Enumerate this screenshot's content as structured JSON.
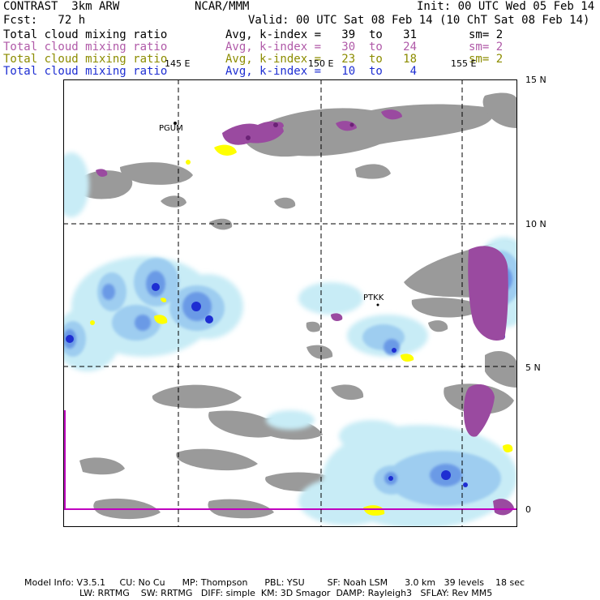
{
  "header": {
    "model": "CONTRAST  3km ARW",
    "org": "NCAR/MMM",
    "init": "Init: 00 UTC Wed 05 Feb 14",
    "fcst": "Fcst:   72 h",
    "valid": "Valid: 00 UTC Sat 08 Feb 14 (10 ChT Sat 08 Feb 14)"
  },
  "fields": [
    {
      "name": "Total cloud mixing ratio",
      "range": "Avg, k-index =   39  to   31",
      "sm": "sm= 2",
      "color": "#000000"
    },
    {
      "name": "Total cloud mixing ratio",
      "range": "Avg, k-index =   30  to   24",
      "sm": "sm= 2",
      "color": "#b05aa8"
    },
    {
      "name": "Total cloud mixing ratio",
      "range": "Avg, k-index =   23  to   18",
      "sm": "sm= 2",
      "color": "#8c8c00"
    },
    {
      "name": "Total cloud mixing ratio",
      "range": "Avg, k-index =   10  to    4",
      "sm": "",
      "color": "#1e2ed2"
    }
  ],
  "map": {
    "lon_labels": [
      "145 E",
      "150 E",
      "155 E"
    ],
    "lat_labels": [
      "15 N",
      "10 N",
      "5 N",
      "0"
    ],
    "stations": [
      {
        "id": "PGUM"
      },
      {
        "id": "PTKK"
      }
    ]
  },
  "footer": {
    "line1": "Model Info: V3.5.1     CU: No Cu      MP: Thompson      PBL: YSU        SF: Noah LSM      3.0 km   39 levels    18 sec",
    "line2": "LW: RRTMG    SW: RRTMG   DIFF: simple  KM: 3D Smagor  DAMP: Rayleigh3   SFLAY: Rev MM5"
  },
  "colors": {
    "gray_cloud": "#9a9a9a",
    "light_blue": "#c8ecf6",
    "mid_blue": "#9ecdf0",
    "blue": "#6a9ae6",
    "deep_blue": "#1e2ed2",
    "purple": "#9a4aa0",
    "magenta_line": "#c000c0",
    "yellow": "#ffff00"
  }
}
